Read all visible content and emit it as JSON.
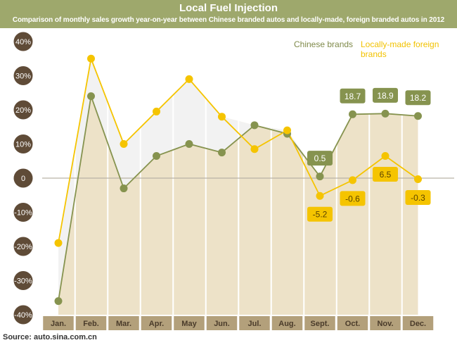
{
  "header": {
    "title": "Local Fuel Injection",
    "subtitle": "Comparison of monthly sales growth year-on-year between Chinese branded autos and locally-made, foreign branded autos in 2012"
  },
  "legend": {
    "chinese": "Chinese brands",
    "foreign": "Locally-made foreign brands"
  },
  "source": "Source: auto.sina.com.cn",
  "colors": {
    "chinese": "#86934f",
    "foreign": "#f5c400",
    "area": "#ede2c8",
    "gap": "#f2f2f2",
    "axis_badge": "#5f4b37",
    "month_bar": "#b3a07b",
    "header": "#9ea86c"
  },
  "chart_data": {
    "type": "line",
    "title": "Local Fuel Injection",
    "subtitle": "Comparison of monthly sales growth year-on-year between Chinese branded autos and locally-made, foreign branded autos in 2012",
    "categories": [
      "Jan.",
      "Feb.",
      "Mar.",
      "Apr.",
      "May",
      "Jun.",
      "Jul.",
      "Aug.",
      "Sept.",
      "Oct.",
      "Nov.",
      "Dec."
    ],
    "y_ticks": [
      "40%",
      "30%",
      "20%",
      "10%",
      "0",
      "-10%",
      "-20%",
      "-30%",
      "-40%"
    ],
    "ylim": [
      -40,
      40
    ],
    "series": [
      {
        "name": "Chinese brands",
        "values": [
          -36,
          24,
          -3,
          6.5,
          10,
          7.5,
          15.5,
          13,
          0.5,
          18.7,
          18.9,
          18.2
        ],
        "labels": [
          "",
          "",
          "",
          "",
          "",
          "",
          "",
          "",
          "0.5",
          "18.7",
          "18.9",
          "18.2"
        ]
      },
      {
        "name": "Locally-made foreign brands",
        "values": [
          -19,
          35,
          10,
          19.5,
          29,
          18,
          8.5,
          14,
          -5.2,
          -0.6,
          6.5,
          -0.3
        ],
        "labels": [
          "",
          "",
          "",
          "",
          "",
          "",
          "",
          "",
          "-5.2",
          "-0.6",
          "6.5",
          "-0.3"
        ]
      }
    ],
    "grid": false,
    "legend_position": "top-right"
  }
}
